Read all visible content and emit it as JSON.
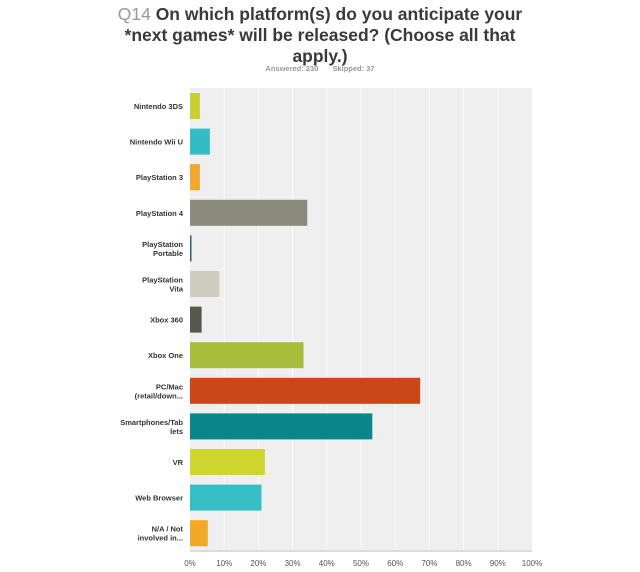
{
  "header": {
    "question_number": "Q14",
    "question_text": "On which platform(s) do you anticipate your *next games* will be released? (Choose all that apply.)",
    "answered": "Answered: 230",
    "skipped": "Skipped: 37"
  },
  "chart_data": {
    "type": "bar",
    "orientation": "horizontal",
    "title": "Q14 On which platform(s) do you anticipate your *next games* will be released? (Choose all that apply.)",
    "categories": [
      [
        "Nintendo 3DS"
      ],
      [
        "Nintendo Wii U"
      ],
      [
        "PlayStation 3"
      ],
      [
        "PlayStation 4"
      ],
      [
        "PlayStation",
        "Portable"
      ],
      [
        "PlayStation",
        "Vita"
      ],
      [
        "Xbox 360"
      ],
      [
        "Xbox One"
      ],
      [
        "PC/Mac",
        "(retail/down..."
      ],
      [
        "Smartphones/Tab",
        "lets"
      ],
      [
        "VR"
      ],
      [
        "Web Browser"
      ],
      [
        "N/A / Not",
        "involved in..."
      ]
    ],
    "values": [
      2.9,
      5.8,
      2.9,
      34.3,
      0.3,
      8.6,
      3.4,
      33.2,
      67.3,
      53.3,
      21.9,
      20.9,
      5.2
    ],
    "colors": [
      "#c9cf33",
      "#33bcc6",
      "#f2a62a",
      "#8a8a7d",
      "#2b5f85",
      "#cfcdc0",
      "#57574b",
      "#a9bd3c",
      "#cb4719",
      "#0b8688",
      "#cfd52f",
      "#35bfc4",
      "#f2aa26"
    ],
    "xlim": [
      0,
      100
    ],
    "xticks": [
      "0%",
      "10%",
      "20%",
      "30%",
      "40%",
      "50%",
      "60%",
      "70%",
      "80%",
      "90%",
      "100%"
    ],
    "grid": true,
    "background": "#efefef"
  }
}
